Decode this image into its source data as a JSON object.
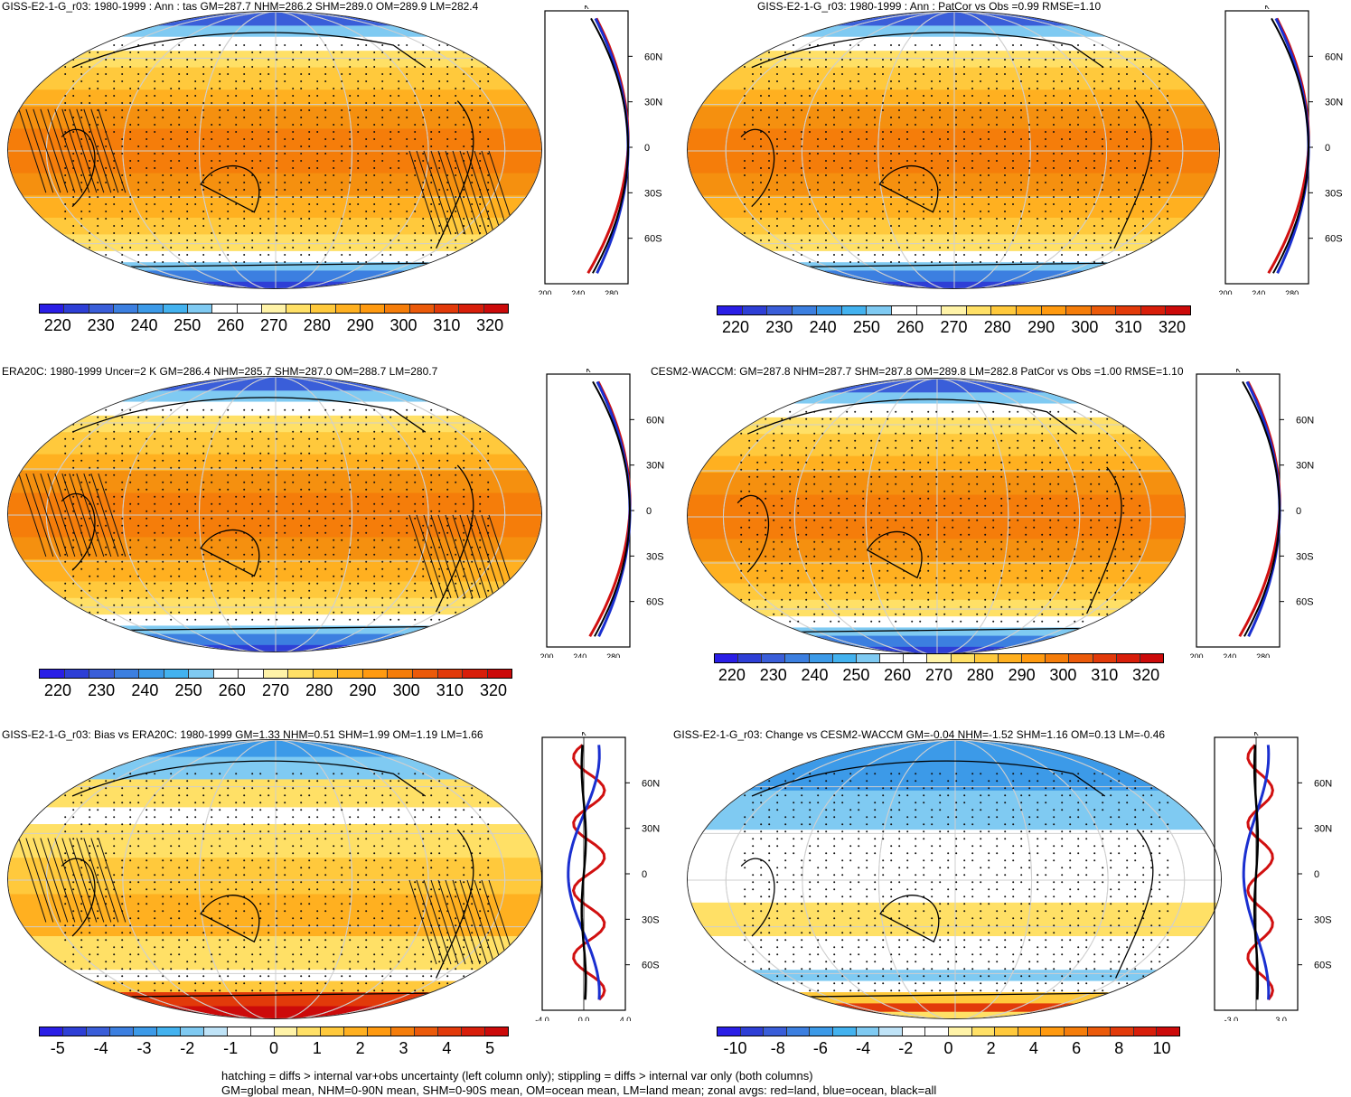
{
  "panels": [
    {
      "title": "GISS-E2-1-G_r03: 1980-1999 : Ann : tas GM=287.7 NHM=286.2 SHM=289.0 OM=289.9 LM=282.4",
      "kind": "abs",
      "hatch": true,
      "colorbar_ticks": [
        "220",
        "230",
        "240",
        "250",
        "260",
        "270",
        "280",
        "290",
        "300",
        "310",
        "320"
      ],
      "zonal": {
        "unit": "K",
        "xticks": [
          "200",
          "240",
          "280"
        ],
        "yticks": [
          "60N",
          "30N",
          "0",
          "30S",
          "60S"
        ],
        "xlim": [
          200,
          300
        ]
      }
    },
    {
      "title": "GISS-E2-1-G_r03: 1980-1999 : Ann : PatCor vs Obs =0.99 RMSE=1.10",
      "kind": "abs",
      "hatch": false,
      "colorbar_ticks": [
        "220",
        "230",
        "240",
        "250",
        "260",
        "270",
        "280",
        "290",
        "300",
        "310",
        "320"
      ],
      "zonal": {
        "unit": "K",
        "xticks": [
          "200",
          "240",
          "280"
        ],
        "yticks": [
          "60N",
          "30N",
          "0",
          "30S",
          "60S"
        ],
        "xlim": [
          200,
          300
        ]
      }
    },
    {
      "title": "ERA20C: 1980-1999 Uncer=2 K GM=286.4 NHM=285.7 SHM=287.0 OM=288.7 LM=280.7",
      "kind": "abs",
      "hatch": true,
      "colorbar_ticks": [
        "220",
        "230",
        "240",
        "250",
        "260",
        "270",
        "280",
        "290",
        "300",
        "310",
        "320"
      ],
      "zonal": {
        "unit": "K",
        "xticks": [
          "200",
          "240",
          "280"
        ],
        "yticks": [
          "60N",
          "30N",
          "0",
          "30S",
          "60S"
        ],
        "xlim": [
          200,
          300
        ]
      }
    },
    {
      "title": "CESM2-WACCM: GM=287.8 NHM=287.7 SHM=287.8 OM=289.8 LM=282.8 PatCor vs Obs =1.00 RMSE=1.10",
      "kind": "abs",
      "hatch": false,
      "colorbar_ticks": [
        "220",
        "230",
        "240",
        "250",
        "260",
        "270",
        "280",
        "290",
        "300",
        "310",
        "320"
      ],
      "zonal": {
        "unit": "K",
        "xticks": [
          "200",
          "240",
          "280"
        ],
        "yticks": [
          "60N",
          "30N",
          "0",
          "30S",
          "60S"
        ],
        "xlim": [
          200,
          300
        ]
      }
    },
    {
      "title": "GISS-E2-1-G_r03: Bias vs ERA20C: 1980-1999 GM=1.33 NHM=0.51 SHM=1.99 OM=1.19 LM=1.66",
      "kind": "diff",
      "hatch": true,
      "colorbar_ticks": [
        "-5",
        "-4",
        "-3",
        "-2",
        "-1",
        "0",
        "1",
        "2",
        "3",
        "4",
        "5"
      ],
      "zonal": {
        "unit": "K",
        "xticks": [
          "-4.0",
          "0.0",
          "4.0"
        ],
        "yticks": [
          "60N",
          "30N",
          "0",
          "30S",
          "60S"
        ],
        "xlim": [
          -4,
          4
        ]
      }
    },
    {
      "title": "GISS-E2-1-G_r03: Change vs CESM2-WACCM GM=-0.04 NHM=-1.52 SHM=1.16 OM=0.13 LM=-0.46",
      "kind": "diff2",
      "hatch": false,
      "colorbar_ticks": [
        "-10",
        "-8",
        "-6",
        "-4",
        "-2",
        "0",
        "2",
        "4",
        "6",
        "8",
        "10"
      ],
      "zonal": {
        "unit": "K",
        "xticks": [
          "-3.0",
          "3.0"
        ],
        "yticks": [
          "60N",
          "30N",
          "0",
          "30S",
          "60S"
        ],
        "xlim": [
          -5,
          5
        ]
      }
    }
  ],
  "colors": {
    "abs_scale": [
      "#2a1ee6",
      "#2e3fd6",
      "#3a5ed9",
      "#3c7fe0",
      "#3c9ae8",
      "#43b2ef",
      "#7fcaf2",
      "#ffffff",
      "#ffffff",
      "#fff3a8",
      "#ffe066",
      "#ffc93c",
      "#ffb020",
      "#ff9a10",
      "#f57d0a",
      "#eb5a0a",
      "#e23a0a",
      "#d81e0a",
      "#cc0a0a"
    ],
    "diff_scale": [
      "#2a1ee6",
      "#2e3fd6",
      "#3a5ed9",
      "#3c7fe0",
      "#3c9ae8",
      "#43b2ef",
      "#7fcaf2",
      "#bfe3f7",
      "#ffffff",
      "#ffffff",
      "#fff3a8",
      "#ffe066",
      "#ffc93c",
      "#ffb020",
      "#ff9a10",
      "#f57d0a",
      "#eb5a0a",
      "#e23a0a",
      "#d81e0a",
      "#cc0a0a"
    ],
    "land": "#d11010",
    "ocean": "#1a2fd0",
    "all": "#000000"
  },
  "footer": [
    "hatching = diffs > internal var+obs uncertainty (left column only); stippling = diffs > internal var only (both columns)",
    "GM=global mean, NHM=0-90N mean, SHM=0-90S mean, OM=ocean mean, LM=land mean; zonal avgs: red=land, blue=ocean, black=all"
  ]
}
